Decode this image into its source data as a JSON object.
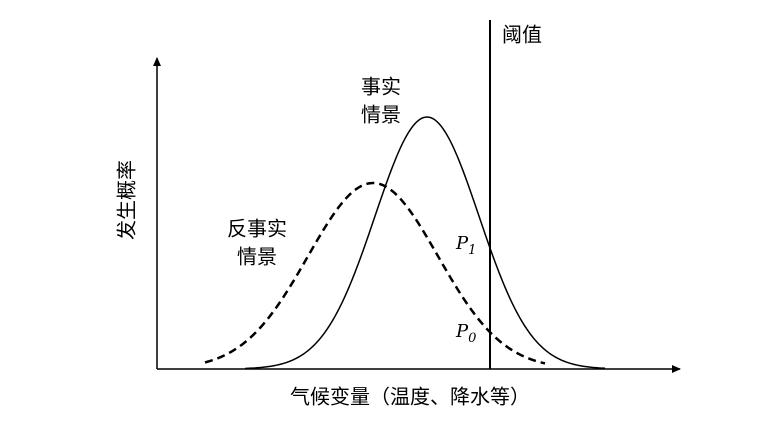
{
  "threshold_label": "阈值",
  "factual_label": [
    "事实",
    "情景"
  ],
  "counterfactual_label": [
    "反事实",
    "情景"
  ],
  "p1": {
    "letter": "P",
    "subscript": "1"
  },
  "p0": {
    "letter": "P",
    "subscript": "0"
  },
  "y_axis_label": "发生概率",
  "x_axis_label": "气候变量（温度、降水等）"
}
